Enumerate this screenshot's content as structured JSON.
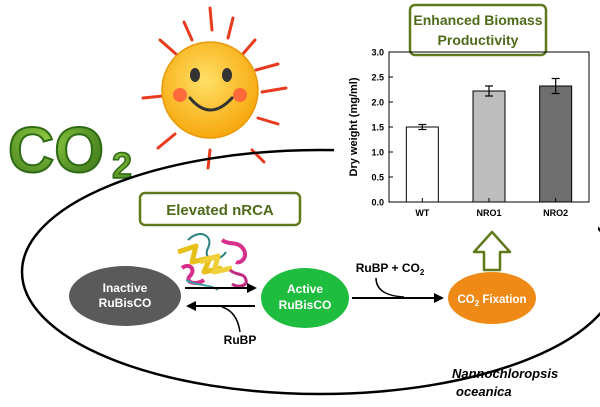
{
  "co2_logo": {
    "text": "CO",
    "subscript": "2"
  },
  "nrca_box": {
    "label": "Elevated nRCA"
  },
  "biomass_box": {
    "line1": "Enhanced Biomass",
    "line2": "Productivity"
  },
  "nodes": {
    "inactive": {
      "line1": "Inactive",
      "line2": "RuBisCO"
    },
    "active": {
      "line1": "Active",
      "line2": "RuBisCO"
    },
    "fixation": {
      "main": "CO",
      "sub": "2",
      "rest": " Fixation"
    }
  },
  "labels": {
    "rubp_co2_main": "RuBP + CO",
    "rubp_co2_sub": "2",
    "rubp": "RuBP"
  },
  "species": {
    "line1": "Nannochloropsis",
    "line2": "oceanica"
  },
  "colors": {
    "green_box_border": "#5f7a1c",
    "green_box_text": "#4f6a1a",
    "inactive_fill": "#5a5a5a",
    "active_fill": "#1fbd3f",
    "fixation_fill": "#ef8a17",
    "sun_fill": "#ffc21a",
    "sun_ray": "#e93a1e",
    "co2_green": "#4c8f22"
  },
  "chart_data": {
    "type": "bar",
    "categories": [
      "WT",
      "NRO1",
      "NRO2"
    ],
    "values": [
      1.5,
      2.22,
      2.32
    ],
    "errors": [
      0.05,
      0.1,
      0.15
    ],
    "bar_colors": [
      "#ffffff",
      "#bdbdbd",
      "#6e6e6e"
    ],
    "ylabel": "Dry weight (mg/ml)",
    "xlabel": "",
    "ylim": [
      0,
      3.0
    ],
    "yticks": [
      "0.0",
      "0.5",
      "1.0",
      "1.5",
      "2.0",
      "2.5",
      "3.0"
    ],
    "grid": false
  }
}
